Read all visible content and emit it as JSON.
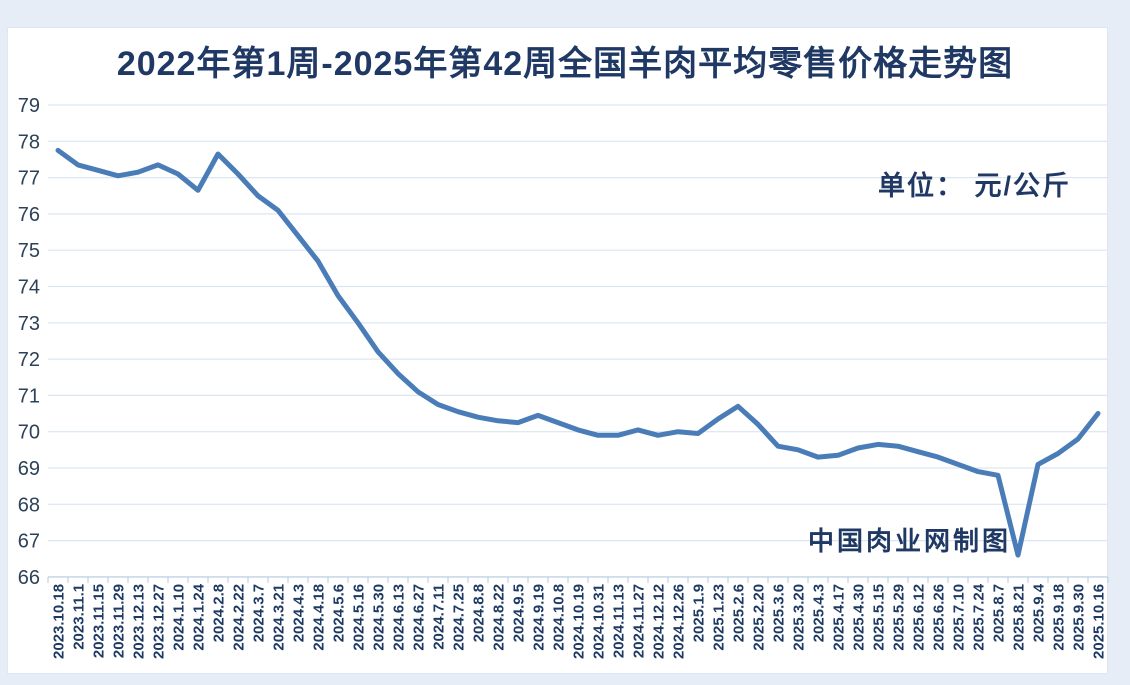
{
  "title": "2022年第1周-2025年第42周全国羊肉平均零售价格走势图",
  "unit_label": "单位： 元/公斤",
  "watermark": "中国肉业网制图",
  "colors": {
    "page_background": "#e7edf6",
    "card_background": "#ffffff",
    "title_text": "#1f3864",
    "y_axis_text": "#2d4258",
    "x_axis_text": "#1e3a63",
    "line": "#4a7db8",
    "gridline": "#dce6f1",
    "axis_line": "#c2d2e4"
  },
  "chart_data": {
    "type": "line",
    "title": "2022年第1周-2025年第42周全国羊肉平均零售价格走势图",
    "unit": "元/公斤",
    "xlabel": "",
    "ylabel": "",
    "ylim": [
      66,
      79
    ],
    "ytick_step": 1,
    "grid": true,
    "legend": "none",
    "categories": [
      "2023.10.18",
      "2023.11.1",
      "2023.11.15",
      "2023.11.29",
      "2023.12.13",
      "2023.12.27",
      "2024.1.10",
      "2024.1.24",
      "2024.2.8",
      "2024.2.22",
      "2024.3.7",
      "2024.3.21",
      "2024.4.3",
      "2024.4.18",
      "2024.5.6",
      "2024.5.16",
      "2024.5.30",
      "2024.6.13",
      "2024.6.27",
      "2024.7.11",
      "2024.7.25",
      "2024.8.8",
      "2024.8.22",
      "2024.9.5",
      "2024.9.19",
      "2024.10.8",
      "2024.10.19",
      "2024.10.31",
      "2024.11.13",
      "2024.11.27",
      "2024.12.12",
      "2024.12.26",
      "2025.1.9",
      "2025.1.23",
      "2025.2.6",
      "2025.2.20",
      "2025.3.6",
      "2025.3.20",
      "2025.4.3",
      "2025.4.17",
      "2025.4.30",
      "2025.5.15",
      "2025.5.29",
      "2025.6.12",
      "2025.6.26",
      "2025.7.10",
      "2025.7.24",
      "2025.8.7",
      "2025.8.21",
      "2025.9.4",
      "2025.9.18",
      "2025.9.30",
      "2025.10.16"
    ],
    "values": [
      77.75,
      77.35,
      77.2,
      77.05,
      77.15,
      77.35,
      77.1,
      76.65,
      77.65,
      77.1,
      76.5,
      76.1,
      75.4,
      74.7,
      73.75,
      73.0,
      72.2,
      71.6,
      71.1,
      70.75,
      70.55,
      70.4,
      70.3,
      70.25,
      70.45,
      70.25,
      70.05,
      69.9,
      69.9,
      70.05,
      69.9,
      70.0,
      69.95,
      70.35,
      70.7,
      70.2,
      69.6,
      69.5,
      69.3,
      69.35,
      69.55,
      69.65,
      69.6,
      69.45,
      69.3,
      69.1,
      68.9,
      68.8,
      66.6,
      69.1,
      69.4,
      69.8,
      70.5
    ]
  }
}
